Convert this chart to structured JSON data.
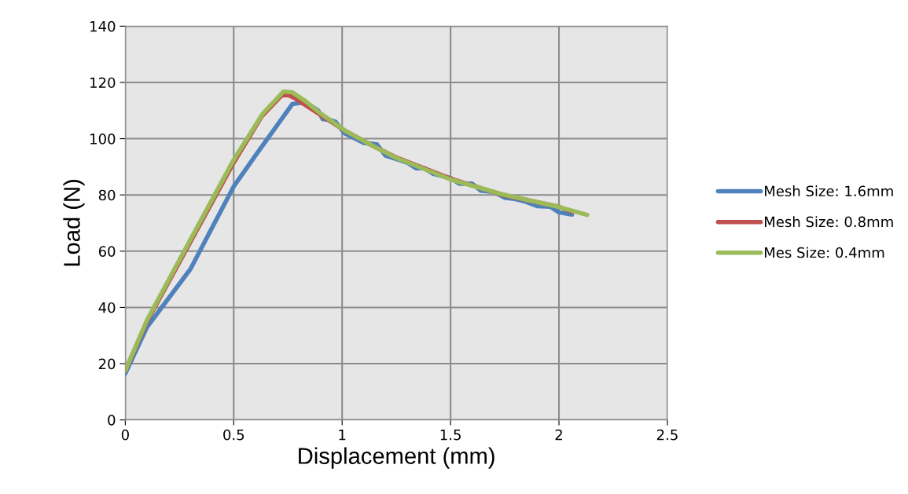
{
  "chart_data": {
    "type": "line",
    "xlabel": "Displacement (mm)",
    "ylabel": "Load (N)",
    "xlim": [
      0,
      2.5
    ],
    "xticks": [
      0,
      0.5,
      1,
      1.5,
      2,
      2.5
    ],
    "ylim": [
      0,
      140
    ],
    "yticks": [
      0,
      20,
      40,
      60,
      80,
      100,
      120,
      140
    ],
    "grid": true,
    "legend": "right",
    "marker": "none",
    "line_style": "solid",
    "series": [
      {
        "name": "Mesh Size: 1.6mm",
        "color": "#4f81bd",
        "x": [
          0,
          0.1,
          0.3,
          0.5,
          0.6,
          0.77,
          0.83,
          0.89,
          0.91,
          0.95,
          0.97,
          1.01,
          1.1,
          1.16,
          1.2,
          1.3,
          1.34,
          1.38,
          1.42,
          1.5,
          1.54,
          1.6,
          1.64,
          1.7,
          1.75,
          1.8,
          1.85,
          1.9,
          1.96,
          2.0,
          2.06
        ],
        "values": [
          16.5,
          33,
          53.6,
          83,
          94,
          112.3,
          113,
          110,
          107,
          106.5,
          106,
          102,
          98.5,
          98,
          94,
          91.5,
          89.5,
          89.5,
          87.5,
          86,
          84,
          84,
          81.5,
          81,
          79,
          78.5,
          77.5,
          76,
          75.8,
          73.8,
          73
        ]
      },
      {
        "name": "Mesh Size: 0.8mm",
        "color": "#c0504d",
        "x": [
          0,
          0.1,
          0.27,
          0.5,
          0.63,
          0.72,
          0.75,
          0.78,
          0.83,
          0.9,
          1.01,
          1.14,
          1.25,
          1.5,
          1.74,
          2.0,
          2.06
        ],
        "values": [
          17.5,
          35,
          59,
          91.5,
          108,
          115.3,
          115.5,
          114.5,
          112,
          108.5,
          103,
          97.5,
          93.3,
          85.8,
          80,
          75.8,
          74
        ]
      },
      {
        "name": "Mes Size: 0.4mm",
        "color": "#9bbb59",
        "x": [
          0,
          0.1,
          0.27,
          0.5,
          0.635,
          0.73,
          0.77,
          0.83,
          0.9,
          1.01,
          1.14,
          1.245,
          1.5,
          1.74,
          2.0,
          2.13
        ],
        "values": [
          17.5,
          35.5,
          59.8,
          92.5,
          109,
          116.8,
          116.5,
          113.4,
          109,
          103,
          97.5,
          93.3,
          85.5,
          80.2,
          75.7,
          72.9
        ]
      }
    ]
  }
}
